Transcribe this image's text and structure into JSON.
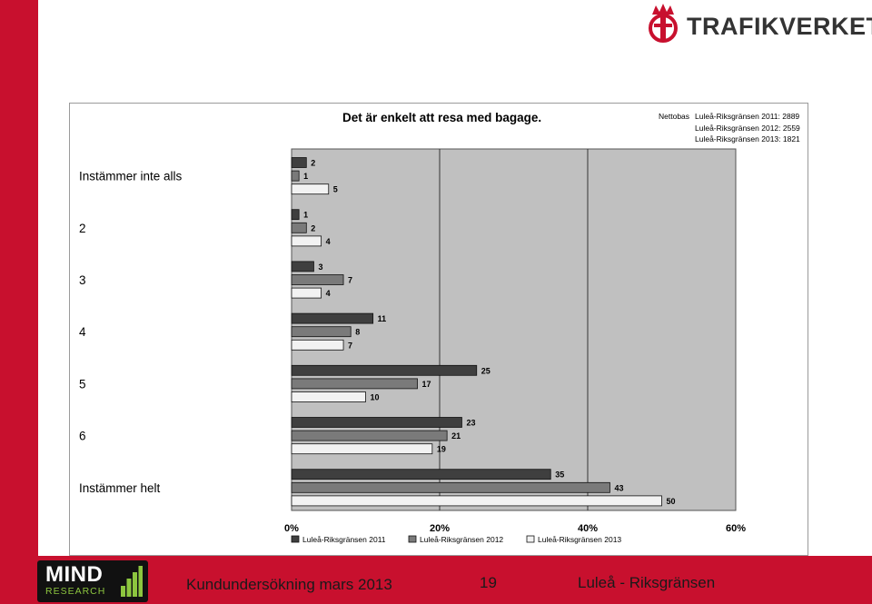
{
  "brand": {
    "logo_text": "TRAFIKVERKET",
    "logo_color": "#333333",
    "accent_red": "#c8102e"
  },
  "footer": {
    "left_text": "Kundundersökning mars 2013",
    "page_number": "19",
    "right_text": "Luleå - Riksgränsen",
    "mind_logo_main": "MIND",
    "mind_logo_sub": "RESEARCH"
  },
  "netto": {
    "label": "Nettobas",
    "rows": [
      "Luleå-Riksgränsen 2011: 2889",
      "Luleå-Riksgränsen 2012: 2559",
      "Luleå-Riksgränsen 2013: 1821"
    ]
  },
  "chart_data": {
    "type": "bar",
    "orientation": "horizontal",
    "title": "Det är enkelt att resa med bagage.",
    "categories": [
      "Instämmer inte alls",
      "2",
      "3",
      "4",
      "5",
      "6",
      "Instämmer helt"
    ],
    "series": [
      {
        "name": "Luleå-Riksgränsen 2011",
        "values": [
          2,
          1,
          3,
          11,
          25,
          23,
          35
        ],
        "color": "#3f3f3f"
      },
      {
        "name": "Luleå-Riksgränsen 2012",
        "values": [
          1,
          2,
          7,
          8,
          17,
          21,
          43
        ],
        "color": "#7a7a7a"
      },
      {
        "name": "Luleå-Riksgränsen 2013",
        "values": [
          5,
          4,
          4,
          7,
          10,
          19,
          50
        ],
        "color": "#f2f2f2"
      }
    ],
    "x_ticks": [
      "0%",
      "20%",
      "40%",
      "60%"
    ],
    "xlim": [
      0,
      60
    ],
    "plot_background": "#c0c0c0",
    "legend_position": "bottom"
  }
}
